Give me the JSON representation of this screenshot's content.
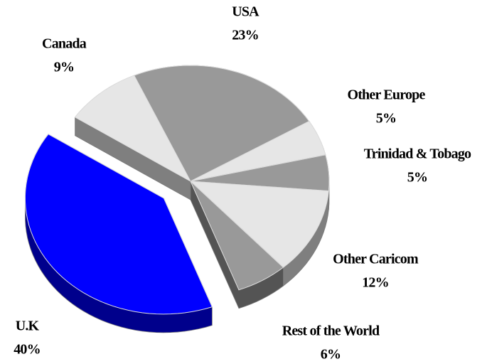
{
  "chart_data": {
    "type": "pie",
    "pie_3d": true,
    "categories": [
      "USA",
      "Other Europe",
      "Trinidad & Tobago",
      "Other Caricom",
      "Rest of the World",
      "U.K",
      "Canada"
    ],
    "values": [
      23,
      5,
      5,
      12,
      6,
      40,
      9
    ],
    "value_labels": [
      "23%",
      "5%",
      "5%",
      "12%",
      "6%",
      "40%",
      "9%"
    ],
    "colors": [
      "#999999",
      "#e6e6e6",
      "#999999",
      "#e6e6e6",
      "#999999",
      "#0000ff",
      "#e6e6e6"
    ],
    "exploded": [
      "U.K"
    ]
  }
}
